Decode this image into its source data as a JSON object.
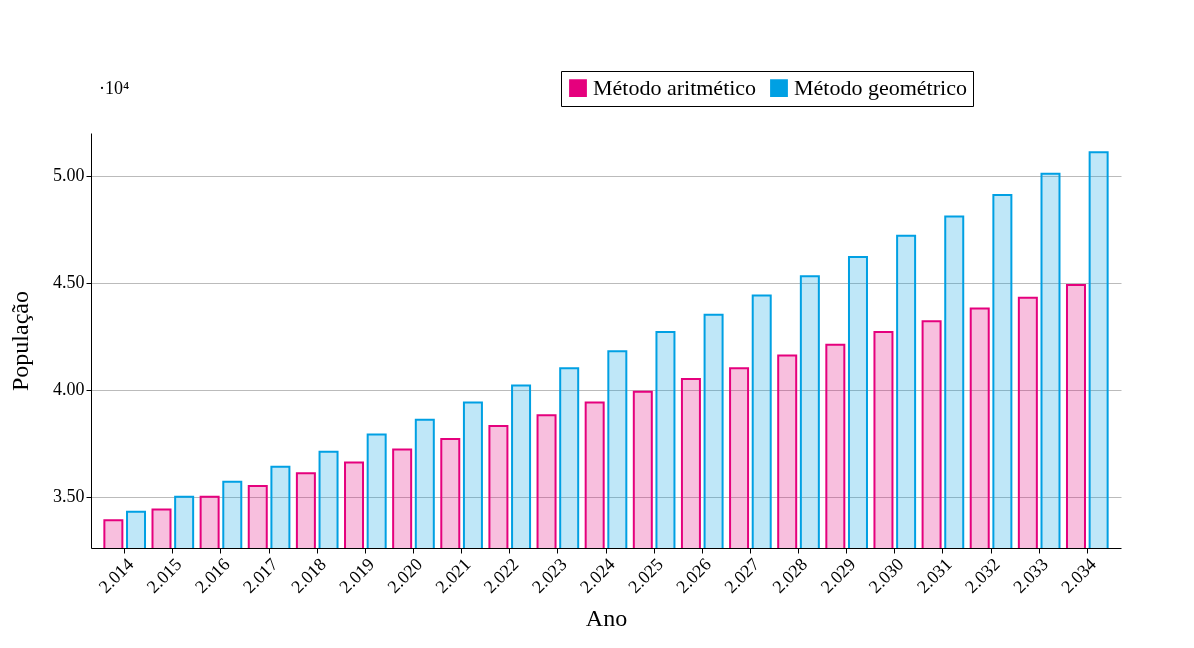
{
  "chart_data": {
    "type": "bar",
    "xlabel": "Ano",
    "ylabel": "População",
    "annotations": [
      "·10⁴"
    ],
    "categories": [
      "2.014",
      "2.015",
      "2.016",
      "2.017",
      "2.018",
      "2.019",
      "2.020",
      "2.021",
      "2.022",
      "2.023",
      "2.024",
      "2.025",
      "2.026",
      "2.027",
      "2.028",
      "2.029",
      "2.030",
      "2.031",
      "2.032",
      "2.033",
      "2.034"
    ],
    "series": [
      {
        "name": "Método aritmético",
        "color": "#e5007d",
        "values": [
          3.39,
          3.44,
          3.5,
          3.55,
          3.61,
          3.66,
          3.72,
          3.77,
          3.83,
          3.88,
          3.94,
          3.99,
          4.05,
          4.1,
          4.16,
          4.21,
          4.27,
          4.32,
          4.38,
          4.43,
          4.49
        ]
      },
      {
        "name": "Método geométrico",
        "color": "#00a0e3",
        "values": [
          3.43,
          3.5,
          3.57,
          3.64,
          3.71,
          3.79,
          3.86,
          3.94,
          4.02,
          4.1,
          4.18,
          4.27,
          4.35,
          4.44,
          4.53,
          4.62,
          4.72,
          4.81,
          4.91,
          5.01,
          5.11
        ]
      }
    ],
    "ylim": [
      3.26,
      5.2
    ],
    "yticks": [
      {
        "value": 3.5,
        "label": "3.50"
      },
      {
        "value": 4.0,
        "label": "4.00"
      },
      {
        "value": 4.5,
        "label": "4.50"
      },
      {
        "value": 5.0,
        "label": "5.00"
      }
    ],
    "grid": "y",
    "legend": "top right"
  }
}
